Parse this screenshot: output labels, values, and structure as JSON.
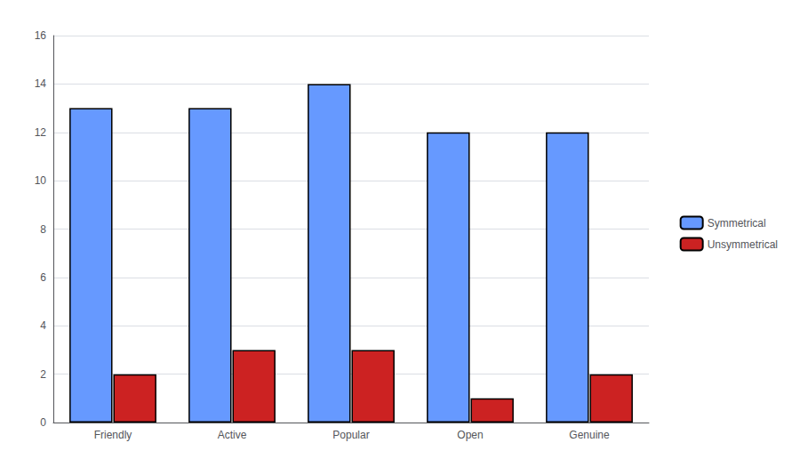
{
  "chart_data": {
    "type": "bar",
    "categories": [
      "Friendly",
      "Active",
      "Popular",
      "Open",
      "Genuine"
    ],
    "series": [
      {
        "name": "Symmetrical",
        "color": "#6699ff",
        "values": [
          13,
          13,
          14,
          12,
          12
        ]
      },
      {
        "name": "Unsymmetrical",
        "color": "#cc2222",
        "values": [
          2,
          3,
          3,
          1,
          2
        ]
      }
    ],
    "ylim": [
      0,
      16
    ],
    "yticks": [
      0,
      2,
      4,
      6,
      8,
      10,
      12,
      14,
      16
    ],
    "grid": true,
    "legend": "right"
  }
}
